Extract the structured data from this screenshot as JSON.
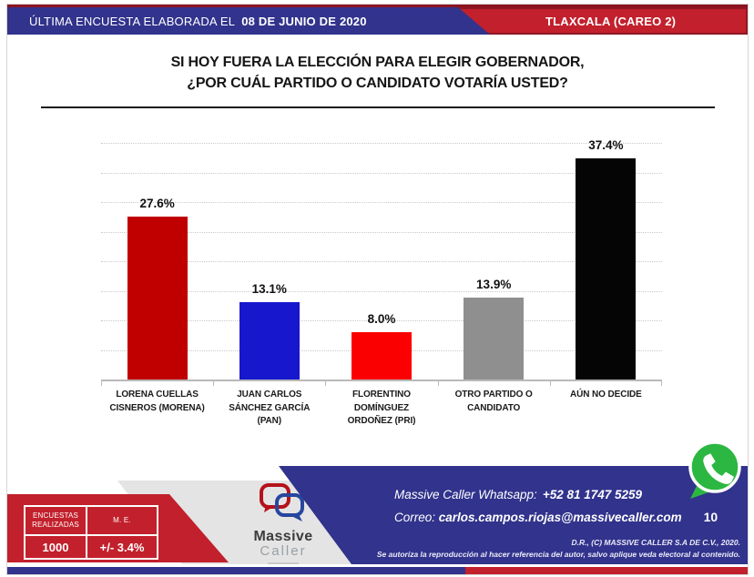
{
  "header": {
    "left_prefix": "ÚLTIMA ENCUESTA ELABORADA EL",
    "left_date": "08 DE JUNIO DE 2020",
    "right_label": "TLAXCALA (CAREO 2)"
  },
  "title": {
    "line1": "SI HOY FUERA LA ELECCIÓN PARA ELEGIR GOBERNADOR,",
    "line2": "¿POR CUÁL PARTIDO O CANDIDATO VOTARÍA USTED?"
  },
  "chart_data": {
    "type": "bar",
    "title": "",
    "xlabel": "",
    "ylabel": "",
    "categories": [
      "LORENA CUELLAS\nCISNEROS (MORENA)",
      "JUAN CARLOS\nSÁNCHEZ GARCÍA\n(PAN)",
      "FLORENTINO\nDOMÍNGUEZ\nORDOÑEZ (PRI)",
      "OTRO PARTIDO O\nCANDIDATO",
      "AÚN NO DECIDE"
    ],
    "values": [
      27.6,
      13.1,
      8.0,
      13.9,
      37.4
    ],
    "value_labels": [
      "27.6%",
      "13.1%",
      "8.0%",
      "13.9%",
      "37.4%"
    ],
    "bar_colors": [
      "#c00000",
      "#1717ce",
      "#fa0000",
      "#8f8f8f",
      "#050505"
    ],
    "ylim": [
      0,
      40
    ],
    "grid_step": 5,
    "grid": "dotted-horizontal",
    "legend": "none"
  },
  "footer": {
    "stats_table": {
      "col1_header": "ENCUESTAS REALIZADAS",
      "col2_header": "M. E.",
      "col1_value": "1000",
      "col2_value": "+/- 3.4%"
    },
    "logo": {
      "word1": "Massive",
      "word2": "Caller"
    },
    "whatsapp_label": "Massive Caller Whatsapp:",
    "whatsapp_number": "+52 81 1747 5259",
    "correo_label": "Correo:",
    "correo_email": "carlos.campos.riojas@massivecaller.com",
    "page_number": "10",
    "legal_line1": "D.R., (C) MASSIVE CALLER S.A DE C.V., 2020.",
    "legal_line2": "Se autoriza la reproducción al hacer referencia del autor, salvo aplique veda electoral al contenido."
  },
  "colors": {
    "header_blue": "#31338c",
    "header_red": "#c2202c",
    "band_blue": "#31338c",
    "shape_red": "#c2202c",
    "shape_gray": "#e4e4e4",
    "whatsapp_green": "#2bb741",
    "maroon_line": "#8c1420"
  }
}
